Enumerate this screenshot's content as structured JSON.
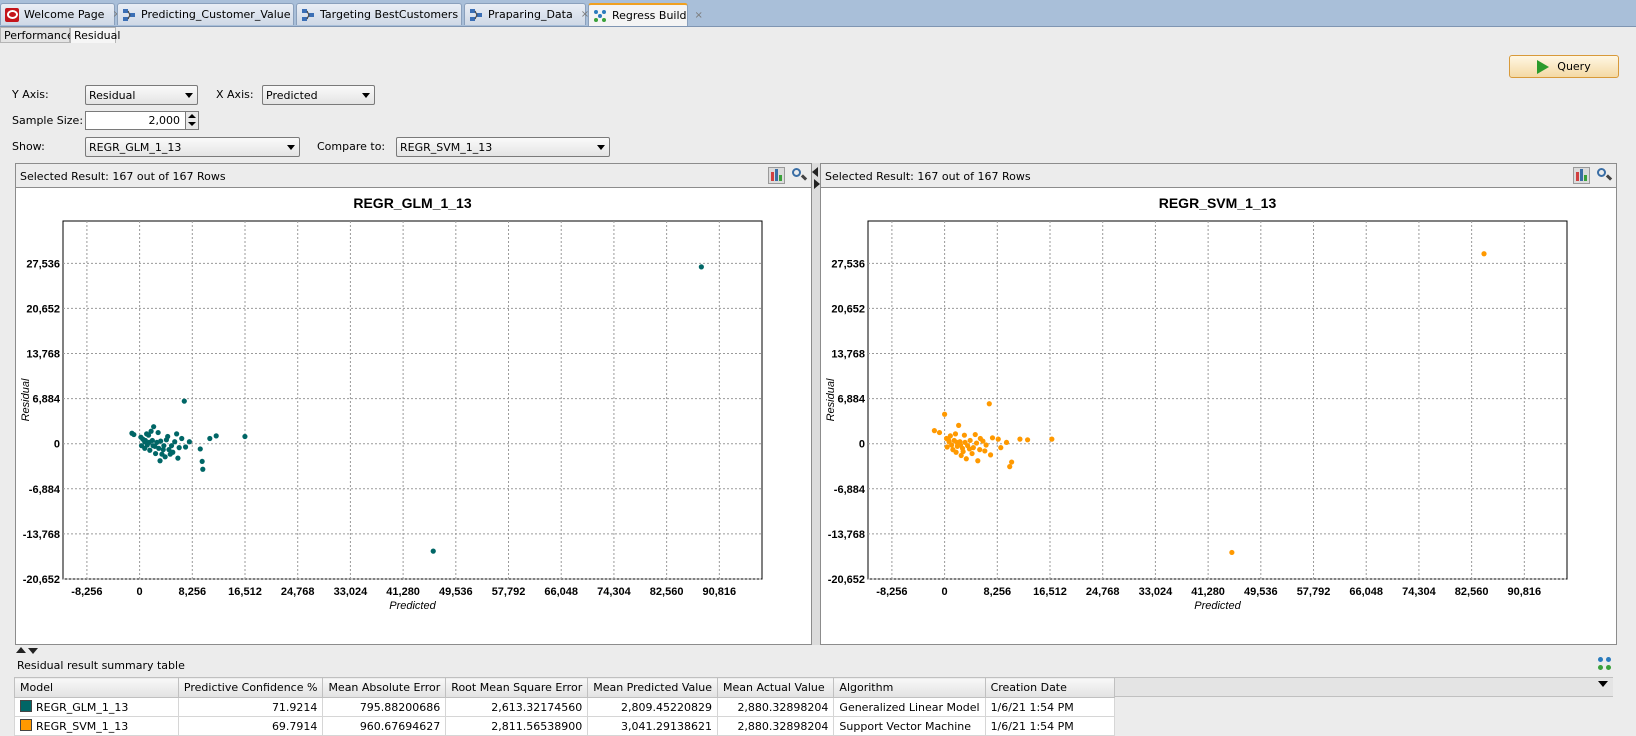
{
  "tabs": [
    {
      "label": "Welcome Page",
      "icon": "oracle-logo-icon",
      "active": false
    },
    {
      "label": "Predicting_Customer_Value",
      "icon": "workflow-icon",
      "active": false
    },
    {
      "label": "Targeting BestCustomers",
      "icon": "workflow-icon",
      "active": false
    },
    {
      "label": "Praparing_Data",
      "icon": "workflow-icon",
      "active": false
    },
    {
      "label": "Regress Build",
      "icon": "regress-model-icon",
      "active": true
    }
  ],
  "close_glyph": "×",
  "subtabs": [
    {
      "label": "Performance",
      "active": false
    },
    {
      "label": "Residual",
      "active": true
    }
  ],
  "controls": {
    "y_axis_label": "Y Axis:",
    "y_axis_value": "Residual",
    "x_axis_label": "X Axis:",
    "x_axis_value": "Predicted",
    "sample_size_label": "Sample Size:",
    "sample_size_value": "2,000",
    "show_label": "Show:",
    "show_value": "REGR_GLM_1_13",
    "compare_label": "Compare to:",
    "compare_value": "REGR_SVM_1_13",
    "query_label": "Query"
  },
  "colors": {
    "glm": "#006666",
    "svm": "#ff9900",
    "accent": "#f0a020"
  },
  "chart_data": [
    {
      "type": "scatter",
      "header": "Selected Result: 167 out of 167 Rows",
      "title": "REGR_GLM_1_13",
      "xlabel": "Predicted",
      "ylabel": "Residual",
      "xlim": [
        -12000,
        97500
      ],
      "ylim": [
        -20652,
        34000
      ],
      "xticks": [
        -8256,
        0,
        8256,
        16512,
        24768,
        33024,
        41280,
        49536,
        57792,
        66048,
        74304,
        82560,
        90816
      ],
      "xtick_labels": [
        "-8,256",
        "0",
        "8,256",
        "16,512",
        "24,768",
        "33,024",
        "41,280",
        "49,536",
        "57,792",
        "66,048",
        "74,304",
        "82,560",
        "90,816"
      ],
      "yticks": [
        27536,
        20652,
        13768,
        6884,
        0,
        -6884,
        -13768,
        -20652
      ],
      "ytick_labels": [
        "27,536",
        "20,652",
        "13,768",
        "6,884",
        "0",
        "-6,884",
        "-13,768",
        "-20,652"
      ],
      "grid": true,
      "color": "#006666",
      "points": [
        [
          88000,
          27000
        ],
        [
          46000,
          -16400
        ],
        [
          7000,
          6500
        ],
        [
          16500,
          1100
        ],
        [
          12000,
          1200
        ],
        [
          11000,
          800
        ],
        [
          9500,
          -800
        ],
        [
          9800,
          -2700
        ],
        [
          9900,
          -3900
        ],
        [
          7800,
          300
        ],
        [
          7200,
          -500
        ],
        [
          -1200,
          1600
        ],
        [
          -900,
          1400
        ],
        [
          200,
          1000
        ],
        [
          500,
          700
        ],
        [
          800,
          300
        ],
        [
          1200,
          -200
        ],
        [
          1500,
          200
        ],
        [
          2000,
          500
        ],
        [
          2400,
          -400
        ],
        [
          2700,
          200
        ],
        [
          3000,
          -700
        ],
        [
          3300,
          400
        ],
        [
          3800,
          -300
        ],
        [
          4200,
          600
        ],
        [
          4600,
          -900
        ],
        [
          5000,
          -300
        ],
        [
          5500,
          300
        ],
        [
          6200,
          -600
        ],
        [
          6600,
          800
        ],
        [
          1800,
          1900
        ],
        [
          2200,
          2600
        ],
        [
          1400,
          1300
        ],
        [
          3500,
          -1600
        ],
        [
          4000,
          -2000
        ],
        [
          3200,
          -2600
        ],
        [
          5200,
          -1300
        ],
        [
          6000,
          -2200
        ],
        [
          800,
          -700
        ],
        [
          1100,
          1500
        ],
        [
          2900,
          1700
        ],
        [
          4400,
          1100
        ],
        [
          5800,
          1500
        ],
        [
          300,
          -300
        ],
        [
          1600,
          -1000
        ],
        [
          2500,
          -1500
        ],
        [
          3700,
          -900
        ],
        [
          4800,
          -1600
        ],
        [
          900,
          500
        ],
        [
          2100,
          -300
        ]
      ]
    },
    {
      "type": "scatter",
      "header": "Selected Result: 167 out of 167 Rows",
      "title": "REGR_SVM_1_13",
      "xlabel": "Predicted",
      "ylabel": "Residual",
      "xlim": [
        -12000,
        97500
      ],
      "ylim": [
        -20652,
        34000
      ],
      "xticks": [
        -8256,
        0,
        8256,
        16512,
        24768,
        33024,
        41280,
        49536,
        57792,
        66048,
        74304,
        82560,
        90816
      ],
      "xtick_labels": [
        "-8,256",
        "0",
        "8,256",
        "16,512",
        "24,768",
        "33,024",
        "41,280",
        "49,536",
        "57,792",
        "66,048",
        "74,304",
        "82,560",
        "90,816"
      ],
      "yticks": [
        27536,
        20652,
        13768,
        6884,
        0,
        -6884,
        -13768,
        -20652
      ],
      "ytick_labels": [
        "27,536",
        "20,652",
        "13,768",
        "6,884",
        "0",
        "-6,884",
        "-13,768",
        "-20,652"
      ],
      "grid": true,
      "color": "#ff9900",
      "points": [
        [
          84500,
          29000
        ],
        [
          45000,
          -16600
        ],
        [
          7000,
          6100
        ],
        [
          16800,
          700
        ],
        [
          13000,
          600
        ],
        [
          11800,
          700
        ],
        [
          10500,
          -2800
        ],
        [
          10200,
          -3500
        ],
        [
          9700,
          200
        ],
        [
          8400,
          700
        ],
        [
          -1600,
          2000
        ],
        [
          -800,
          1700
        ],
        [
          0,
          4500
        ],
        [
          300,
          800
        ],
        [
          700,
          300
        ],
        [
          1100,
          -200
        ],
        [
          1500,
          500
        ],
        [
          2000,
          -400
        ],
        [
          2400,
          300
        ],
        [
          2800,
          -700
        ],
        [
          3200,
          200
        ],
        [
          3600,
          -300
        ],
        [
          4000,
          500
        ],
        [
          4500,
          -600
        ],
        [
          5000,
          100
        ],
        [
          5500,
          -900
        ],
        [
          6000,
          400
        ],
        [
          6500,
          -200
        ],
        [
          7500,
          900
        ],
        [
          1800,
          -1300
        ],
        [
          2600,
          -1800
        ],
        [
          3400,
          -2300
        ],
        [
          4300,
          -1500
        ],
        [
          5200,
          -2600
        ],
        [
          6300,
          -1100
        ],
        [
          900,
          1200
        ],
        [
          1700,
          1500
        ],
        [
          2200,
          2800
        ],
        [
          3100,
          1300
        ],
        [
          4800,
          1400
        ],
        [
          5600,
          800
        ],
        [
          400,
          -500
        ],
        [
          1300,
          -900
        ],
        [
          2900,
          -1200
        ],
        [
          3900,
          -800
        ],
        [
          600,
          600
        ],
        [
          1900,
          200
        ],
        [
          8800,
          -600
        ],
        [
          7200,
          -1700
        ],
        [
          2500,
          -200
        ]
      ]
    }
  ],
  "summary": {
    "label": "Residual result summary table",
    "columns": [
      "Model",
      "Predictive Confidence %",
      "Mean Absolute Error",
      "Root Mean Square Error",
      "Mean Predicted Value",
      "Mean Actual Value",
      "Algorithm",
      "Creation Date"
    ],
    "rows": [
      {
        "color": "#006666",
        "cells": [
          "REGR_GLM_1_13",
          "71.9214",
          "795.88200686",
          "2,613.32174560",
          "2,809.45220829",
          "2,880.32898204",
          "Generalized Linear Model",
          "1/6/21 1:54 PM"
        ]
      },
      {
        "color": "#ff9900",
        "cells": [
          "REGR_SVM_1_13",
          "69.7914",
          "960.67694627",
          "2,811.56538900",
          "3,041.29138621",
          "2,880.32898204",
          "Support Vector Machine",
          "1/6/21 1:54 PM"
        ]
      }
    ]
  }
}
